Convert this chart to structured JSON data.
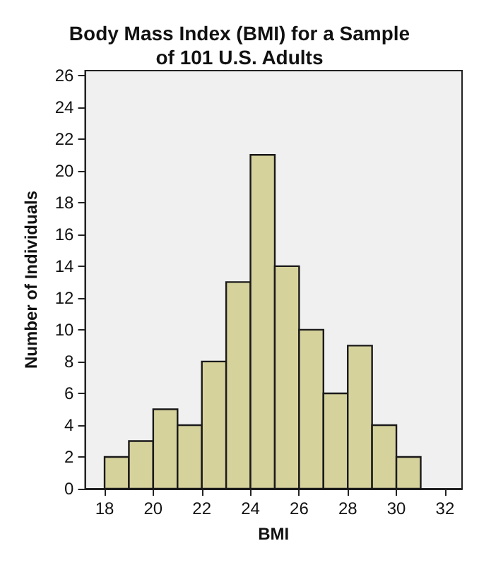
{
  "chart_data": {
    "type": "histogram",
    "title": "Body Mass Index (BMI) for a Sample\nof 101 U.S. Adults",
    "xlabel": "BMI",
    "ylabel": "Number of Individuals",
    "bins": [
      18,
      19,
      20,
      21,
      22,
      23,
      24,
      25,
      26,
      27,
      28,
      29,
      30,
      31
    ],
    "values": [
      2,
      3,
      5,
      4,
      8,
      13,
      21,
      14,
      10,
      6,
      9,
      4,
      2
    ],
    "color": "#d6d29c",
    "xlim": [
      17.2,
      32.7
    ],
    "xticks": [
      18,
      20,
      22,
      24,
      26,
      28,
      30,
      32
    ],
    "ylim": [
      0,
      26.3
    ],
    "yticks": [
      0,
      2,
      4,
      6,
      8,
      10,
      12,
      14,
      16,
      18,
      20,
      22,
      24,
      26
    ],
    "grid": false
  }
}
